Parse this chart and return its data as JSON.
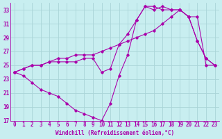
{
  "xlabel": "Windchill (Refroidissement éolien,°C)",
  "background_color": "#c8eef0",
  "grid_color": "#aad4d8",
  "line_color": "#aa00aa",
  "xlim": [
    -0.5,
    23.5
  ],
  "ylim": [
    17,
    34
  ],
  "xticks": [
    0,
    1,
    2,
    3,
    4,
    5,
    6,
    7,
    8,
    9,
    10,
    11,
    12,
    13,
    14,
    15,
    16,
    17,
    18,
    19,
    20,
    21,
    22,
    23
  ],
  "yticks": [
    17,
    19,
    21,
    23,
    25,
    27,
    29,
    31,
    33
  ],
  "series": [
    {
      "x": [
        0,
        1,
        2,
        3,
        4,
        5,
        6,
        7,
        8,
        9,
        10,
        11,
        12,
        13,
        14,
        15,
        16,
        17,
        18,
        19,
        20,
        21,
        22,
        23
      ],
      "y": [
        24.0,
        23.5,
        22.5,
        21.5,
        21.0,
        20.5,
        19.5,
        18.5,
        18.0,
        17.5,
        17.0,
        19.5,
        23.5,
        26.5,
        31.5,
        33.5,
        33.0,
        33.5,
        33.0,
        33.0,
        32.0,
        28.5,
        26.0,
        25.0
      ]
    },
    {
      "x": [
        0,
        1,
        2,
        3,
        4,
        5,
        6,
        7,
        8,
        9,
        10,
        11,
        12,
        13,
        14,
        15,
        16,
        17,
        18,
        19,
        20,
        21,
        22,
        23
      ],
      "y": [
        24.0,
        24.5,
        25.0,
        25.0,
        25.5,
        25.5,
        25.5,
        25.5,
        26.0,
        26.0,
        24.0,
        24.5,
        28.0,
        29.5,
        31.5,
        33.5,
        33.5,
        33.0,
        33.0,
        33.0,
        32.0,
        28.5,
        26.0,
        25.0
      ]
    },
    {
      "x": [
        0,
        1,
        2,
        3,
        4,
        5,
        6,
        7,
        8,
        9,
        10,
        11,
        12,
        13,
        14,
        15,
        16,
        17,
        18,
        19,
        20,
        21,
        22,
        23
      ],
      "y": [
        24.0,
        24.5,
        25.0,
        25.0,
        25.5,
        26.0,
        26.0,
        26.5,
        26.5,
        26.5,
        27.0,
        27.5,
        28.0,
        28.5,
        29.0,
        29.5,
        30.0,
        31.0,
        32.0,
        33.0,
        32.0,
        32.0,
        25.0,
        25.0
      ]
    }
  ]
}
